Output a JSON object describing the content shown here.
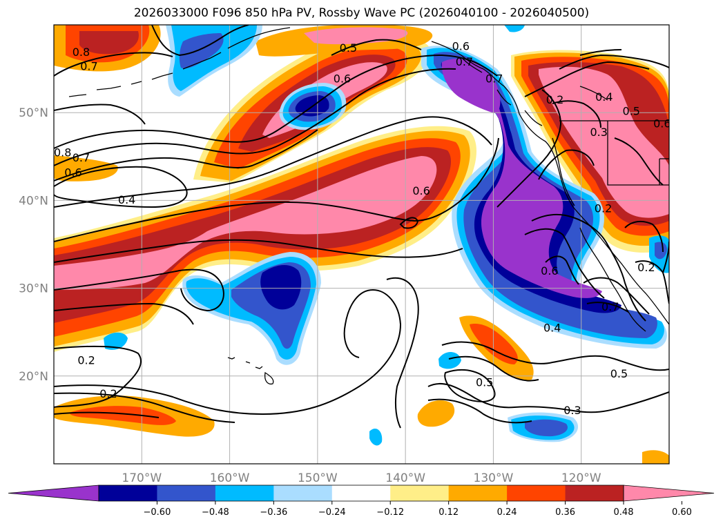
{
  "title": "2026033000 F096 850 hPa PV, Rossby Wave PC (2026040100 - 2026040500)",
  "map": {
    "lon_range": [
      -180,
      -110
    ],
    "lat_range": [
      10,
      60
    ],
    "lon_ticks": [
      {
        "value": -170,
        "label": "170°W"
      },
      {
        "value": -160,
        "label": "160°W"
      },
      {
        "value": -150,
        "label": "150°W"
      },
      {
        "value": -140,
        "label": "140°W"
      },
      {
        "value": -130,
        "label": "130°W"
      },
      {
        "value": -120,
        "label": "120°W"
      }
    ],
    "lat_ticks": [
      {
        "value": 20,
        "label": "20°N"
      },
      {
        "value": 30,
        "label": "30°N"
      },
      {
        "value": 40,
        "label": "40°N"
      },
      {
        "value": 50,
        "label": "50°N"
      }
    ],
    "gridlines": true,
    "contour_labels": [
      {
        "lon": -146.5,
        "lat": 57.1,
        "text": "0.5"
      },
      {
        "lon": -176.9,
        "lat": 56.6,
        "text": "0.8"
      },
      {
        "lon": -176.0,
        "lat": 55.0,
        "text": "0.7"
      },
      {
        "lon": -133.3,
        "lat": 55.5,
        "text": "0.7"
      },
      {
        "lon": -133.7,
        "lat": 57.3,
        "text": "0.6"
      },
      {
        "lon": -147.2,
        "lat": 53.6,
        "text": "0.6"
      },
      {
        "lon": -129.9,
        "lat": 53.6,
        "text": "0.7"
      },
      {
        "lon": -123.0,
        "lat": 51.2,
        "text": "0.2"
      },
      {
        "lon": -117.4,
        "lat": 51.5,
        "text": "0.4"
      },
      {
        "lon": -114.3,
        "lat": 49.9,
        "text": "0.5"
      },
      {
        "lon": -110.8,
        "lat": 48.5,
        "text": "0.6"
      },
      {
        "lon": -118.0,
        "lat": 47.5,
        "text": "0.3"
      },
      {
        "lon": -179.0,
        "lat": 45.2,
        "text": "0.8"
      },
      {
        "lon": -176.9,
        "lat": 44.6,
        "text": "0.7"
      },
      {
        "lon": -177.8,
        "lat": 42.9,
        "text": "0.6"
      },
      {
        "lon": -171.7,
        "lat": 39.8,
        "text": "0.4"
      },
      {
        "lon": -138.2,
        "lat": 40.8,
        "text": "0.6"
      },
      {
        "lon": -117.5,
        "lat": 38.8,
        "text": "0.2"
      },
      {
        "lon": -123.6,
        "lat": 31.7,
        "text": "0.6"
      },
      {
        "lon": -112.6,
        "lat": 32.1,
        "text": "0.2"
      },
      {
        "lon": -116.7,
        "lat": 27.6,
        "text": "0.7"
      },
      {
        "lon": -123.3,
        "lat": 25.2,
        "text": "0.4"
      },
      {
        "lon": -176.3,
        "lat": 21.5,
        "text": "0.2"
      },
      {
        "lon": -173.8,
        "lat": 17.7,
        "text": "0.2"
      },
      {
        "lon": -115.7,
        "lat": 20.0,
        "text": "0.5"
      },
      {
        "lon": -131.0,
        "lat": 19.0,
        "text": "0.5"
      },
      {
        "lon": -121.0,
        "lat": 15.8,
        "text": "0.3"
      }
    ]
  },
  "colorbar": {
    "colors": [
      "#9933cc",
      "#000099",
      "#3355cc",
      "#00bbff",
      "#aaddff",
      "#ffffff",
      "#ffee88",
      "#ffaa00",
      "#ff4400",
      "#bb2222",
      "#ff88aa"
    ],
    "labels": [
      "−0.60",
      "−0.48",
      "−0.36",
      "−0.24",
      "−0.12",
      "0.12",
      "0.24",
      "0.36",
      "0.48",
      "0.60"
    ]
  }
}
